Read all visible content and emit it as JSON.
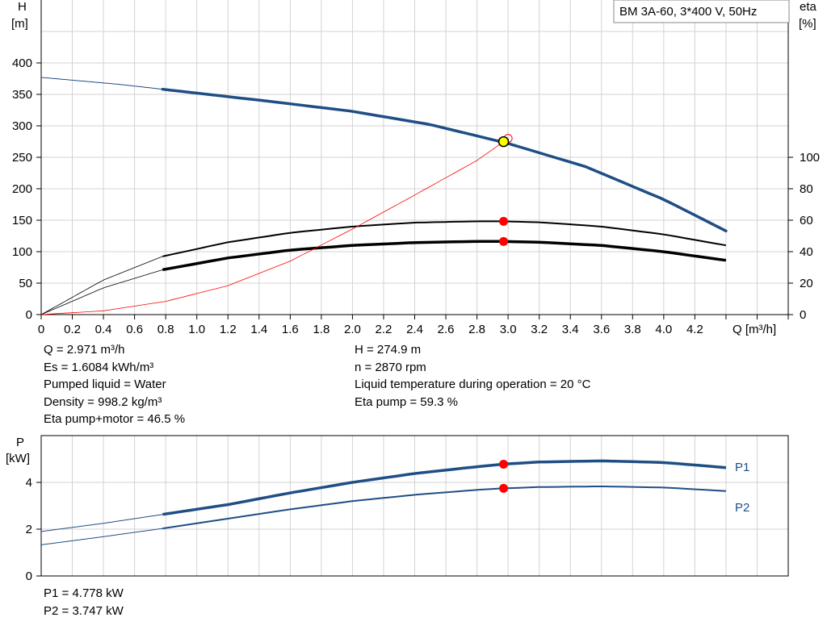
{
  "chart_data": [
    {
      "type": "line",
      "title": "BM 3A-60, 3*400 V, 50Hz",
      "xlabel": "Q [m³/h]",
      "ylabel_left_name": "H",
      "ylabel_left_unit": "[m]",
      "ylabel_right_name": "eta",
      "ylabel_right_unit": "[%]",
      "xlim": [
        0,
        4.8
      ],
      "ylim_left": [
        0,
        400
      ],
      "ylim_right": [
        0,
        100
      ],
      "x_ticks": [
        "0",
        "0.2",
        "0.4",
        "0.6",
        "0.8",
        "1.0",
        "1.2",
        "1.4",
        "1.6",
        "1.8",
        "2.0",
        "2.2",
        "2.4",
        "2.6",
        "2.8",
        "3.0",
        "3.2",
        "3.4",
        "3.6",
        "3.8",
        "4.0",
        "4.2"
      ],
      "y_ticks_left": [
        "0",
        "50",
        "100",
        "150",
        "200",
        "250",
        "300",
        "350",
        "400"
      ],
      "y_ticks_right": [
        "0",
        "20",
        "40",
        "60",
        "80",
        "100"
      ],
      "grid": true,
      "colors": {
        "head": "#1f4e85",
        "eta": "#000000",
        "system": "#ff0000",
        "operating_point": "#ff0000",
        "duty_marker": "#ffff00"
      },
      "series": [
        {
          "key": "head",
          "axis": "left",
          "x": [
            0,
            0.5,
            1.0,
            1.5,
            2.0,
            2.5,
            3.0,
            3.5,
            4.0,
            4.4
          ],
          "y": [
            377,
            366,
            352,
            338,
            323,
            302,
            272,
            235,
            183,
            133
          ],
          "operating_range": [
            0.78,
            4.4
          ]
        },
        {
          "key": "eta_pump",
          "axis": "right",
          "x": [
            0,
            0.4,
            0.78,
            1.2,
            1.6,
            2.0,
            2.4,
            2.8,
            2.97,
            3.2,
            3.6,
            4.0,
            4.4
          ],
          "y": [
            0,
            22,
            37,
            46,
            52,
            56,
            58.5,
            59.3,
            59.3,
            58.7,
            56,
            51,
            44
          ],
          "operating_range": [
            0.78,
            4.4
          ]
        },
        {
          "key": "eta_pump_motor",
          "axis": "right",
          "x": [
            0,
            0.4,
            0.78,
            1.2,
            1.6,
            2.0,
            2.4,
            2.8,
            2.97,
            3.2,
            3.6,
            4.0,
            4.4
          ],
          "y": [
            0,
            17,
            28.5,
            36,
            41,
            44,
            45.8,
            46.5,
            46.5,
            46,
            44,
            40,
            34.5
          ],
          "operating_range": [
            0.78,
            4.4
          ]
        },
        {
          "key": "system_curve",
          "axis": "left",
          "x": [
            0,
            0.4,
            0.8,
            1.2,
            1.6,
            2.0,
            2.4,
            2.8,
            3.0
          ],
          "y": [
            0,
            6,
            21,
            46,
            85,
            136,
            190,
            245,
            280
          ]
        }
      ],
      "operating_point": {
        "x": 2.971,
        "head": 274.9,
        "eta_pump": 59.3,
        "eta_pump_motor": 46.5
      }
    },
    {
      "type": "line",
      "ylabel_name": "P",
      "ylabel_unit": "[kW]",
      "xlim": [
        0,
        4.8
      ],
      "ylim": [
        0,
        6
      ],
      "y_ticks": [
        "0",
        "2",
        "4"
      ],
      "grid": true,
      "color": "#1f4e85",
      "series": [
        {
          "name": "P1",
          "x": [
            0,
            0.4,
            0.78,
            1.2,
            1.6,
            2.0,
            2.4,
            2.8,
            2.97,
            3.2,
            3.6,
            4.0,
            4.4
          ],
          "y": [
            1.9,
            2.25,
            2.63,
            3.05,
            3.55,
            4.0,
            4.38,
            4.67,
            4.778,
            4.87,
            4.92,
            4.85,
            4.63
          ],
          "operating_range": [
            0.78,
            4.4
          ]
        },
        {
          "name": "P2",
          "x": [
            0,
            0.4,
            0.78,
            1.2,
            1.6,
            2.0,
            2.4,
            2.8,
            2.97,
            3.2,
            3.6,
            4.0,
            4.4
          ],
          "y": [
            1.33,
            1.68,
            2.03,
            2.45,
            2.85,
            3.2,
            3.47,
            3.68,
            3.747,
            3.8,
            3.83,
            3.78,
            3.63
          ],
          "operating_range": [
            0.78,
            4.4
          ]
        }
      ],
      "operating_point": {
        "x": 2.971,
        "P1": 4.778,
        "P2": 3.747
      }
    }
  ],
  "info": {
    "left": [
      "Q = 2.971 m³/h",
      "Es = 1.6084 kWh/m³",
      "Pumped liquid = Water",
      "Density = 998.2 kg/m³",
      "Eta pump+motor = 46.5 %"
    ],
    "right": [
      "H = 274.9 m",
      "n = 2870 rpm",
      "Liquid temperature during operation = 20 °C",
      "Eta pump = 59.3 %"
    ],
    "power": [
      "P1 = 4.778 kW",
      "P2 = 3.747 kW"
    ]
  }
}
